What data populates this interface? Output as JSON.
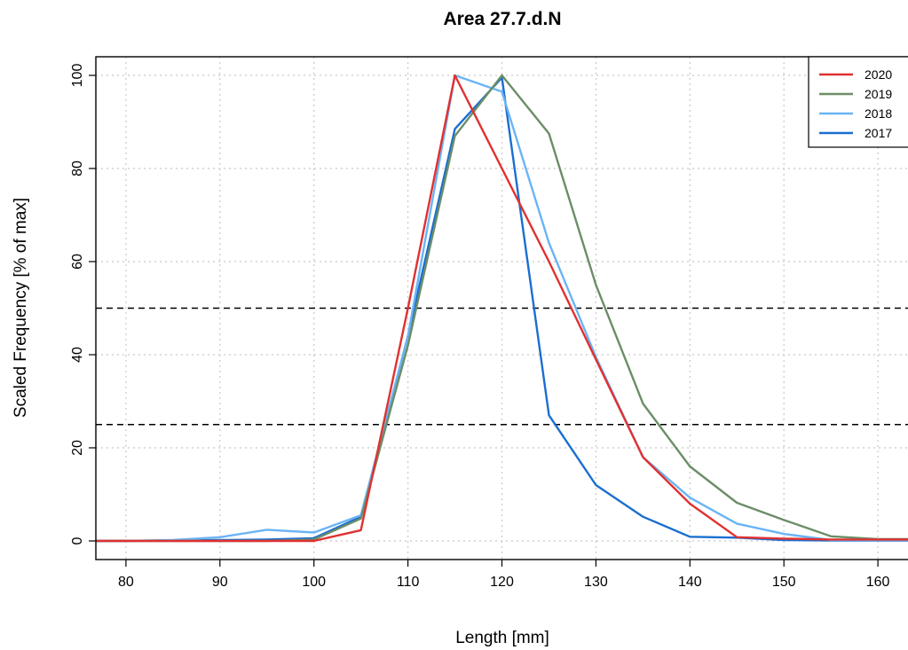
{
  "chart_data": {
    "type": "line",
    "title": "Area 27.7.d.N",
    "xlabel": "Length  [mm]",
    "ylabel": "Scaled Frequency  [% of max]",
    "xlim": [
      76.8,
      163.2
    ],
    "ylim": [
      -4,
      104
    ],
    "xticks": [
      80,
      90,
      100,
      110,
      120,
      130,
      140,
      150,
      160
    ],
    "yticks": [
      0,
      20,
      40,
      60,
      80,
      100
    ],
    "grid": true,
    "reference_lines": [
      50,
      25
    ],
    "legend_position": "top-right",
    "x": [
      75,
      80,
      85,
      90,
      95,
      100,
      105,
      110,
      115,
      120,
      125,
      130,
      135,
      140,
      145,
      150,
      155,
      160,
      165
    ],
    "series": [
      {
        "name": "2020",
        "color": "#e03131",
        "values": [
          0,
          0,
          0,
          0,
          0,
          0,
          2.3,
          50,
          100,
          80,
          60,
          39,
          18,
          8,
          0.8,
          0.5,
          0.3,
          0.3,
          0.3
        ]
      },
      {
        "name": "2019",
        "color": "#6b8e67",
        "values": [
          0,
          0,
          0,
          0,
          0,
          0.3,
          4.8,
          42,
          87,
          100,
          87.5,
          55,
          29.5,
          16,
          8.2,
          4.5,
          1,
          0.4,
          0.4
        ]
      },
      {
        "name": "2018",
        "color": "#6ab4f5",
        "values": [
          0,
          0,
          0.2,
          0.8,
          2.4,
          1.8,
          5.5,
          44,
          100,
          96.5,
          64,
          39.5,
          18,
          9.3,
          3.7,
          1.5,
          0.2,
          0.2,
          0.2
        ]
      },
      {
        "name": "2017",
        "color": "#1a6fd1",
        "values": [
          0,
          0,
          0.1,
          0.2,
          0.3,
          0.6,
          5.2,
          44,
          88.5,
          99.5,
          27,
          12,
          5.2,
          0.9,
          0.7,
          0.2,
          0.1,
          0.1,
          0.1
        ]
      }
    ]
  }
}
